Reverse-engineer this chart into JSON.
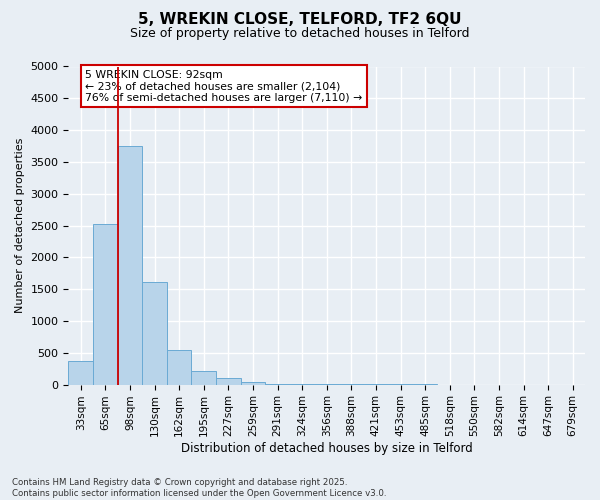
{
  "title_line1": "5, WREKIN CLOSE, TELFORD, TF2 6QU",
  "title_line2": "Size of property relative to detached houses in Telford",
  "xlabel": "Distribution of detached houses by size in Telford",
  "ylabel": "Number of detached properties",
  "categories": [
    "33sqm",
    "65sqm",
    "98sqm",
    "130sqm",
    "162sqm",
    "195sqm",
    "227sqm",
    "259sqm",
    "291sqm",
    "324sqm",
    "356sqm",
    "388sqm",
    "421sqm",
    "453sqm",
    "485sqm",
    "518sqm",
    "550sqm",
    "582sqm",
    "614sqm",
    "647sqm",
    "679sqm"
  ],
  "values": [
    370,
    2530,
    3750,
    1620,
    540,
    210,
    100,
    40,
    10,
    5,
    5,
    3,
    2,
    2,
    2,
    1,
    1,
    0,
    0,
    0,
    0
  ],
  "bar_color": "#b8d4ea",
  "bar_edge_color": "#6aaad4",
  "vline_color": "#cc0000",
  "annotation_text": "5 WREKIN CLOSE: 92sqm\n← 23% of detached houses are smaller (2,104)\n76% of semi-detached houses are larger (7,110) →",
  "annotation_box_color": "#ffffff",
  "annotation_box_edge_color": "#cc0000",
  "ylim": [
    0,
    5000
  ],
  "yticks": [
    0,
    500,
    1000,
    1500,
    2000,
    2500,
    3000,
    3500,
    4000,
    4500,
    5000
  ],
  "footer_line1": "Contains HM Land Registry data © Crown copyright and database right 2025.",
  "footer_line2": "Contains public sector information licensed under the Open Government Licence v3.0.",
  "bg_color": "#e8eef4",
  "grid_color": "#ffffff"
}
